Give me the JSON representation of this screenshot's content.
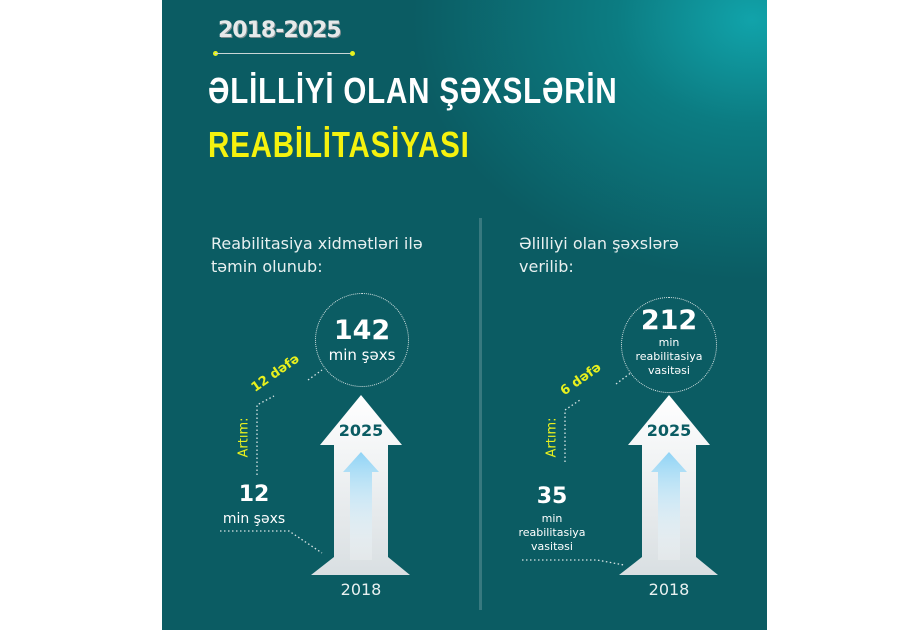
{
  "header": {
    "year_range": "2018-2025",
    "title_line1": "ƏLİLLİYİ OLAN ŞƏXSLƏRİN",
    "title_line2": "REABİLİTASİYASI"
  },
  "colors": {
    "accent_yellow": "#f5f20e",
    "background": "#0b5c63"
  },
  "left": {
    "lead_line1": "Reabilitasiya xidmətləri ilə",
    "lead_line2": "təmin olunub:",
    "value_2025": "142",
    "unit_2025": "min şəxs",
    "factor": "12 dəfə",
    "growth_label": "Artım:",
    "value_2018": "12",
    "unit_2018": "min şəxs",
    "arrow_year": "2025",
    "base_year": "2018"
  },
  "right": {
    "lead_line1": "Əlilliyi olan şəxslərə",
    "lead_line2": "verilib:",
    "value_2025": "212",
    "unit_2025_line1": "min",
    "unit_2025_line2": "reabilitasiya",
    "unit_2025_line3": "vasitəsi",
    "factor": "6 dəfə",
    "growth_label": "Artım:",
    "value_2018": "35",
    "unit_2018_line1": "min",
    "unit_2018_line2": "reabilitasiya",
    "unit_2018_line3": "vasitəsi",
    "arrow_year": "2025",
    "base_year": "2018"
  }
}
